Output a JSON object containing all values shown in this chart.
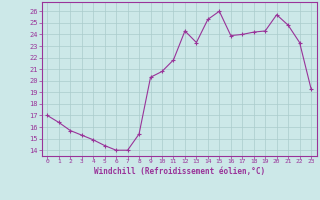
{
  "x": [
    0,
    1,
    2,
    3,
    4,
    5,
    6,
    7,
    8,
    9,
    10,
    11,
    12,
    13,
    14,
    15,
    16,
    17,
    18,
    19,
    20,
    21,
    22,
    23
  ],
  "y": [
    17.0,
    16.4,
    15.7,
    15.3,
    14.9,
    14.4,
    14.0,
    14.0,
    15.4,
    20.3,
    20.8,
    21.8,
    24.3,
    23.3,
    25.3,
    26.0,
    23.9,
    24.0,
    24.2,
    24.3,
    25.7,
    24.8,
    23.3,
    19.3
  ],
  "line_color": "#993399",
  "marker_color": "#993399",
  "bg_color": "#cce8e8",
  "grid_color": "#aacccc",
  "axis_color": "#993399",
  "tick_color": "#993399",
  "xlabel": "Windchill (Refroidissement éolien,°C)",
  "ylabel_ticks": [
    14,
    15,
    16,
    17,
    18,
    19,
    20,
    21,
    22,
    23,
    24,
    25,
    26
  ],
  "ylim": [
    13.5,
    26.8
  ],
  "xlim": [
    -0.5,
    23.5
  ]
}
